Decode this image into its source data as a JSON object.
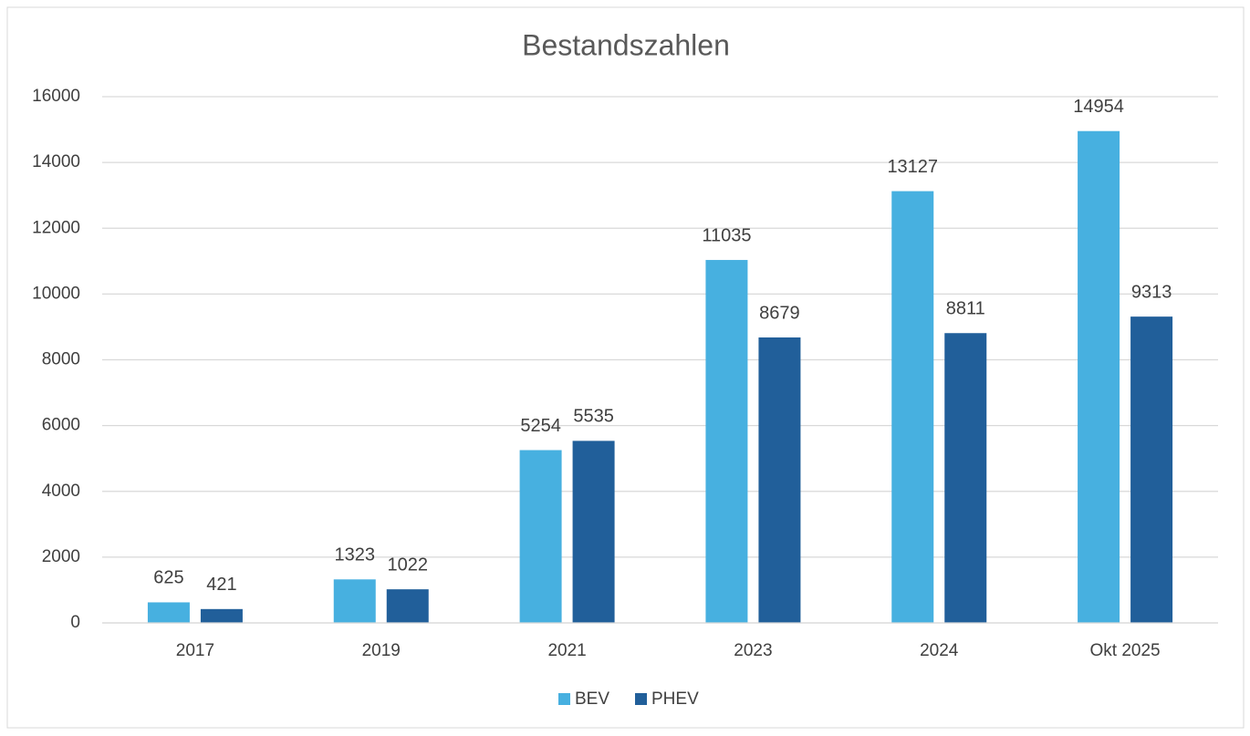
{
  "chart_data": {
    "type": "bar",
    "title": "Bestandszahlen",
    "categories": [
      "2017",
      "2019",
      "2021",
      "2023",
      "2024",
      "Okt 2025"
    ],
    "series": [
      {
        "name": "BEV",
        "color": "#47b0e0",
        "values": [
          625,
          1323,
          5254,
          11035,
          13127,
          14954
        ]
      },
      {
        "name": "PHEV",
        "color": "#215f9a",
        "values": [
          421,
          1022,
          5535,
          8679,
          8811,
          9313
        ]
      }
    ],
    "ylim": [
      0,
      16000
    ],
    "yticks": [
      0,
      2000,
      4000,
      6000,
      8000,
      10000,
      12000,
      14000,
      16000
    ],
    "grid": true,
    "legend": "bottom"
  }
}
